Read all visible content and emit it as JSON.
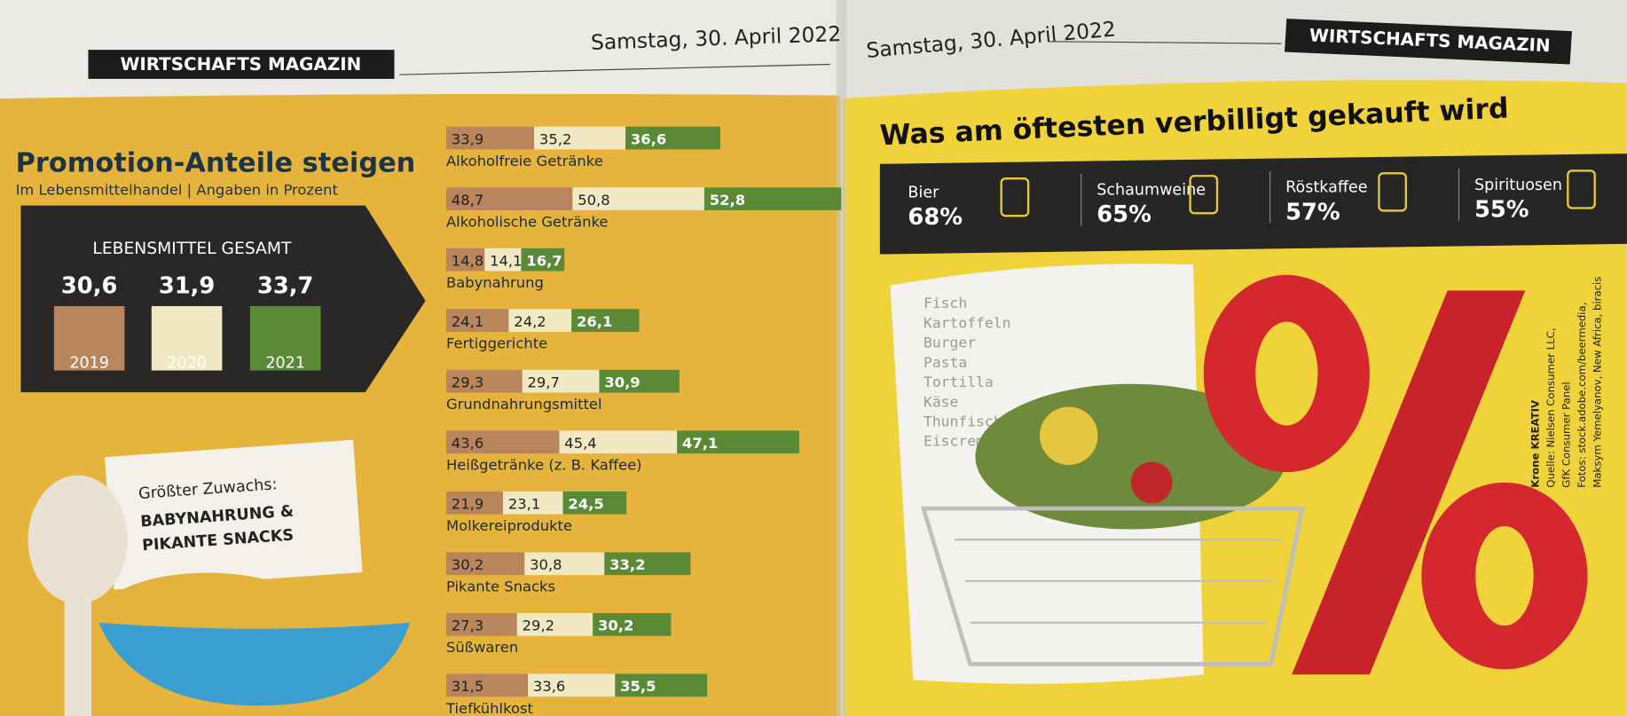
{
  "left_page": {
    "section": "WIRTSCHAFTS MAGAZIN",
    "date": "Samstag, 30. April 2022"
  },
  "chart_data": {
    "type": "bar",
    "stacked": true,
    "orientation": "horizontal",
    "title": "Promotion-Anteile steigen",
    "subtitle": "Im Lebensmittelhandel | Angaben in Prozent",
    "categories": [
      "Alkoholfreie Getränke",
      "Alkoholische Getränke",
      "Babynahrung",
      "Fertiggerichte",
      "Grundnahrungsmittel",
      "Heißgetränke (z. B. Kaffee)",
      "Molkereiprodukte",
      "Pikante Snacks",
      "Süßwaren",
      "Tiefkühlkost"
    ],
    "series": [
      {
        "name": "2019",
        "color": "#b8855c",
        "values": [
          33.9,
          48.7,
          14.8,
          24.1,
          29.3,
          43.6,
          21.9,
          30.2,
          27.3,
          31.5
        ],
        "value_labels": [
          "33,9",
          "48,7",
          "14,8",
          "24,1",
          "29,3",
          "43,6",
          "21,9",
          "30,2",
          "27,3",
          "31,5"
        ]
      },
      {
        "name": "2020",
        "color": "#f1e8c4",
        "values": [
          35.2,
          50.8,
          14.1,
          24.2,
          29.7,
          45.4,
          23.1,
          30.8,
          29.2,
          33.6
        ],
        "value_labels": [
          "35,2",
          "50,8",
          "14,1",
          "24,2",
          "29,7",
          "45,4",
          "23,1",
          "30,8",
          "29,2",
          "33,6"
        ]
      },
      {
        "name": "2021",
        "color": "#5b8a36",
        "values": [
          36.6,
          52.8,
          16.7,
          26.1,
          30.9,
          47.1,
          24.5,
          33.2,
          30.2,
          35.5
        ],
        "value_labels": [
          "36,6",
          "52,8",
          "16,7",
          "26,1",
          "30,9",
          "47,1",
          "24,5",
          "33,2",
          "30,2",
          "35,5"
        ]
      }
    ]
  },
  "summary": {
    "title": "LEBENSMITTEL GESAMT",
    "values": [
      "30,6",
      "31,9",
      "33,7"
    ]
  },
  "callout": {
    "lines": [
      "Größter Zuwachs:",
      "BABYNAHRUNG &",
      "PIKANTE SNACKS"
    ]
  },
  "right_page": {
    "date": "Samstag, 30. April 2022",
    "section": "WIRTSCHAFTS MAGAZIN",
    "title": "Was am öftesten verbilligt gekauft wird",
    "items": [
      {
        "name": "Bier",
        "share": "68%"
      },
      {
        "name": "Schaumweine",
        "share": "65%"
      },
      {
        "name": "Röstkaffee",
        "share": "57%"
      },
      {
        "name": "Spirituosen",
        "share": "55%"
      }
    ],
    "receipt": [
      "Fisch",
      "Kartoffeln",
      "Burger",
      "Pasta",
      "Tortilla",
      "Käse",
      "Thunfisch",
      "Eiscreme"
    ],
    "credits": [
      "Krone KREATIV",
      "Quelle: Nielsen Consumer LLC,",
      "GfK Consumer Panel",
      "Fotos: stock.adobe.com/beermedia,",
      "Maksym Yemelyanov, New Africa, biracis"
    ]
  }
}
